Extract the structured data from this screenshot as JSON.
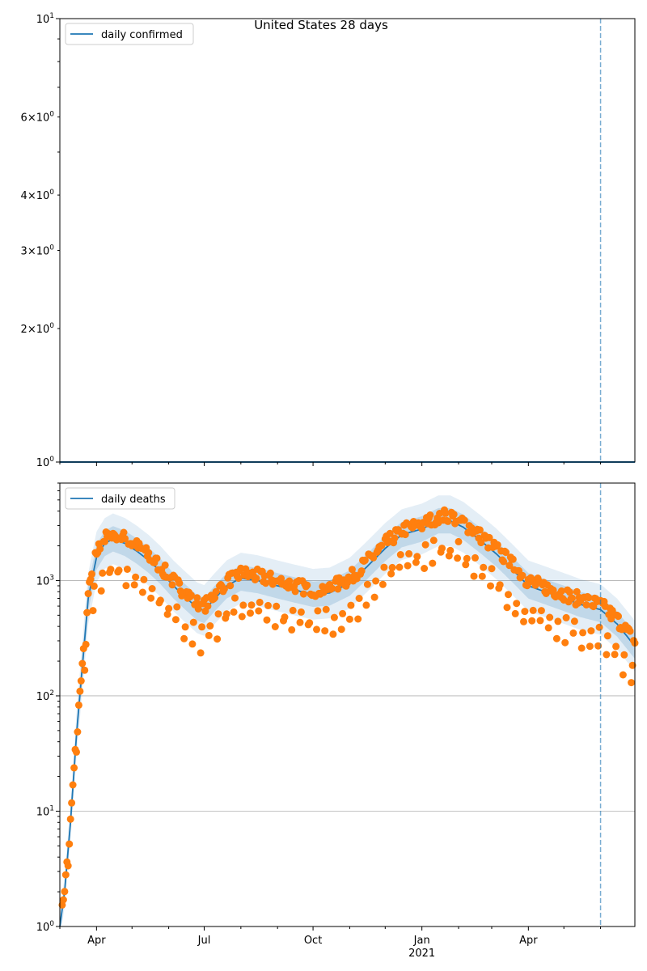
{
  "suptitle": "United States 28 days",
  "chart_data": [
    {
      "type": "line",
      "panel": "top",
      "yscale": "log",
      "ylim": [
        1,
        10
      ],
      "xlim": [
        "2020-03-01",
        "2021-06-30"
      ],
      "ytick_labels": [
        {
          "value": 1,
          "base": "10",
          "exp": "0"
        },
        {
          "value": 2,
          "mant": "2",
          "base": "10",
          "exp": "0"
        },
        {
          "value": 3,
          "mant": "3",
          "base": "10",
          "exp": "0"
        },
        {
          "value": 4,
          "mant": "4",
          "base": "10",
          "exp": "0"
        },
        {
          "value": 6,
          "mant": "6",
          "base": "10",
          "exp": "0"
        },
        {
          "value": 10,
          "base": "10",
          "exp": "1"
        }
      ],
      "legend": {
        "entries": [
          "daily confirmed"
        ],
        "placement": "upper-left"
      },
      "series": [
        {
          "name": "daily confirmed",
          "color": "#1f77b4",
          "x": [
            "2020-03-01",
            "2021-06-30"
          ],
          "y": [
            1,
            1
          ]
        }
      ],
      "vline": {
        "x": "2021-06-01",
        "style": "dashed",
        "color": "#1f77b4"
      },
      "grid": false
    },
    {
      "type": "scatter",
      "panel": "bottom",
      "yscale": "log",
      "ylim": [
        1,
        7000
      ],
      "xlim": [
        "2020-03-01",
        "2021-06-30"
      ],
      "ytick_labels": [
        {
          "value": 1,
          "base": "10",
          "exp": "0"
        },
        {
          "value": 10,
          "base": "10",
          "exp": "1"
        },
        {
          "value": 100,
          "base": "10",
          "exp": "2"
        },
        {
          "value": 1000,
          "base": "10",
          "exp": "3"
        }
      ],
      "xtick_labels": [
        {
          "date": "2020-04-01",
          "label": "Apr"
        },
        {
          "date": "2020-07-01",
          "label": "Jul"
        },
        {
          "date": "2020-10-01",
          "label": "Oct"
        },
        {
          "date": "2021-01-01",
          "label": "Jan",
          "sub": "2021"
        },
        {
          "date": "2021-04-01",
          "label": "Apr"
        }
      ],
      "legend": {
        "entries": [
          "daily deaths"
        ],
        "placement": "upper-left"
      },
      "vline": {
        "x": "2021-06-01",
        "style": "dashed",
        "color": "#1f77b4"
      },
      "grid": true,
      "trend_anchors": [
        [
          "2020-03-01",
          1
        ],
        [
          "2020-03-05",
          2
        ],
        [
          "2020-03-10",
          8
        ],
        [
          "2020-03-15",
          45
        ],
        [
          "2020-03-20",
          180
        ],
        [
          "2020-03-25",
          700
        ],
        [
          "2020-04-01",
          1600
        ],
        [
          "2020-04-08",
          2100
        ],
        [
          "2020-04-15",
          2300
        ],
        [
          "2020-04-25",
          2100
        ],
        [
          "2020-05-05",
          1800
        ],
        [
          "2020-05-15",
          1500
        ],
        [
          "2020-05-25",
          1200
        ],
        [
          "2020-06-05",
          900
        ],
        [
          "2020-06-15",
          720
        ],
        [
          "2020-06-25",
          580
        ],
        [
          "2020-07-01",
          550
        ],
        [
          "2020-07-10",
          700
        ],
        [
          "2020-07-20",
          900
        ],
        [
          "2020-08-01",
          1050
        ],
        [
          "2020-08-15",
          1000
        ],
        [
          "2020-09-01",
          900
        ],
        [
          "2020-09-15",
          830
        ],
        [
          "2020-10-01",
          760
        ],
        [
          "2020-10-15",
          780
        ],
        [
          "2020-11-01",
          950
        ],
        [
          "2020-11-15",
          1300
        ],
        [
          "2020-12-01",
          1900
        ],
        [
          "2020-12-15",
          2500
        ],
        [
          "2021-01-01",
          2800
        ],
        [
          "2021-01-15",
          3300
        ],
        [
          "2021-01-25",
          3300
        ],
        [
          "2021-02-05",
          2900
        ],
        [
          "2021-02-20",
          2200
        ],
        [
          "2021-03-05",
          1700
        ],
        [
          "2021-03-20",
          1200
        ],
        [
          "2021-04-01",
          900
        ],
        [
          "2021-04-15",
          800
        ],
        [
          "2021-05-01",
          700
        ],
        [
          "2021-05-15",
          620
        ],
        [
          "2021-06-01",
          560
        ],
        [
          "2021-06-15",
          420
        ],
        [
          "2021-06-30",
          270
        ]
      ],
      "series": [
        {
          "name": "daily deaths",
          "kind": "line",
          "color": "#1f77b4"
        },
        {
          "name": "observed",
          "kind": "scatter",
          "color": "#ff7f0e"
        }
      ]
    }
  ]
}
